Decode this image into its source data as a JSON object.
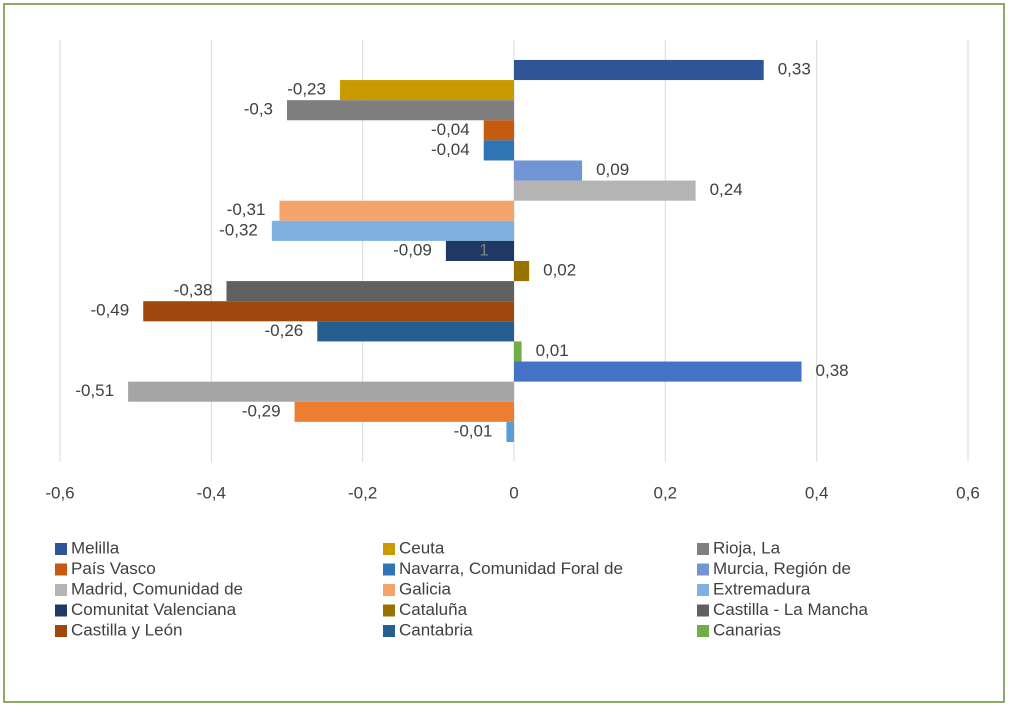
{
  "chart_data": {
    "type": "barh",
    "annotation": "1",
    "xlim": [
      -0.6,
      0.6
    ],
    "xticks": [
      {
        "value": -0.6,
        "label": "-0,6"
      },
      {
        "value": -0.4,
        "label": "-0,4"
      },
      {
        "value": -0.2,
        "label": "-0,2"
      },
      0,
      {
        "value": 0.2,
        "label": "0,2"
      },
      {
        "value": 0.4,
        "label": "0,4"
      },
      {
        "value": 0.6,
        "label": "0,6"
      }
    ],
    "grid": true,
    "legend": "bottom",
    "series": [
      {
        "name": "Melilla",
        "color": "#2f5597",
        "values": [
          0.33
        ],
        "value_labels": [
          "0,33"
        ]
      },
      {
        "name": "Ceuta",
        "color": "#c89a00",
        "values": [
          -0.23
        ],
        "value_labels": [
          "-0,23"
        ]
      },
      {
        "name": "Rioja, La",
        "color": "#7f7f7f",
        "values": [
          -0.3
        ],
        "value_labels": [
          "-0,3"
        ]
      },
      {
        "name": "País Vasco",
        "color": "#c55a11",
        "values": [
          -0.04
        ],
        "value_labels": [
          "-0,04"
        ]
      },
      {
        "name": "Navarra, Comunidad Foral de",
        "color": "#2e75b6",
        "values": [
          -0.04
        ],
        "value_labels": [
          "-0,04"
        ]
      },
      {
        "name": "Murcia, Región de",
        "color": "#7094d4",
        "values": [
          0.09
        ],
        "value_labels": [
          "0,09"
        ]
      },
      {
        "name": "Madrid, Comunidad de",
        "color": "#b4b4b4",
        "values": [
          0.24
        ],
        "value_labels": [
          "0,24"
        ]
      },
      {
        "name": "Galicia",
        "color": "#f4a46a",
        "values": [
          -0.31
        ],
        "value_labels": [
          "-0,31"
        ]
      },
      {
        "name": "Extremadura",
        "color": "#7eb0e0",
        "values": [
          -0.32
        ],
        "value_labels": [
          "-0,32"
        ]
      },
      {
        "name": "Comunitat Valenciana",
        "color": "#203864",
        "values": [
          -0.09
        ],
        "value_labels": [
          "-0,09"
        ]
      },
      {
        "name": "Cataluña",
        "color": "#997300",
        "values": [
          0.02
        ],
        "value_labels": [
          "0,02"
        ]
      },
      {
        "name": "Castilla - La Mancha",
        "color": "#606060",
        "values": [
          -0.38
        ],
        "value_labels": [
          "-0,38"
        ]
      },
      {
        "name": "Castilla y León",
        "color": "#9e480e",
        "values": [
          -0.49
        ],
        "value_labels": [
          "-0,49"
        ]
      },
      {
        "name": "Cantabria",
        "color": "#255e91",
        "values": [
          -0.26
        ],
        "value_labels": [
          "-0,26"
        ]
      },
      {
        "name": "Canarias",
        "color": "#70ad47",
        "values": [
          0.01
        ],
        "value_labels": [
          "0,01"
        ]
      },
      {
        "name": null,
        "color": "#4472c4",
        "values": [
          0.38
        ],
        "value_labels": [
          "0,38"
        ]
      },
      {
        "name": null,
        "color": "#a5a5a5",
        "values": [
          -0.51
        ],
        "value_labels": [
          "-0,51"
        ]
      },
      {
        "name": null,
        "color": "#ed7d31",
        "values": [
          -0.29
        ],
        "value_labels": [
          "-0,29"
        ]
      },
      {
        "name": null,
        "color": "#5b9bd5",
        "values": [
          -0.01
        ],
        "value_labels": [
          "-0,01"
        ]
      }
    ]
  }
}
